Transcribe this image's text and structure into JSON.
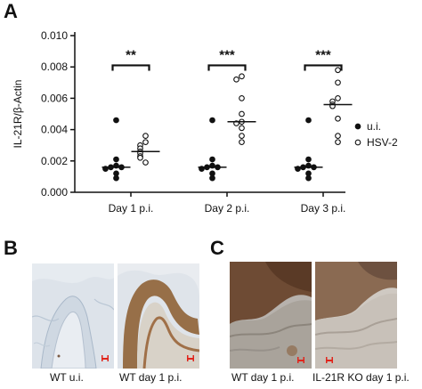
{
  "panels": {
    "a_label": "A",
    "b_label": "B",
    "c_label": "C"
  },
  "chart_data": {
    "type": "scatter",
    "ylabel": "IL-21R/β-Actin",
    "ylim": [
      0,
      0.01
    ],
    "yticks": [
      "0.000",
      "0.002",
      "0.004",
      "0.006",
      "0.008",
      "0.010"
    ],
    "groups": [
      "Day 1 p.i.",
      "Day 2 p.i.",
      "Day 3 p.i."
    ],
    "legend": {
      "position": "right",
      "entries": [
        {
          "label": "u.i.",
          "marker": "filled"
        },
        {
          "label": "HSV-2",
          "marker": "open"
        }
      ]
    },
    "series": [
      {
        "name": "u.i.",
        "marker": "filled",
        "values": [
          [
            0.0046,
            0.0021,
            0.0017,
            0.0016,
            0.0016,
            0.0015,
            0.0012,
            0.0009
          ],
          [
            0.0046,
            0.0021,
            0.0017,
            0.0016,
            0.0016,
            0.0015,
            0.0012,
            0.0009
          ],
          [
            0.0046,
            0.0021,
            0.0017,
            0.0016,
            0.0016,
            0.0015,
            0.0012,
            0.0009
          ]
        ],
        "medians": [
          0.0016,
          0.0016,
          0.0016
        ]
      },
      {
        "name": "HSV-2",
        "marker": "open",
        "values": [
          [
            0.0036,
            0.0032,
            0.003,
            0.0028,
            0.0026,
            0.0025,
            0.0023,
            0.0022,
            0.0019
          ],
          [
            0.0074,
            0.0072,
            0.006,
            0.005,
            0.0045,
            0.0044,
            0.0041,
            0.0036,
            0.0032
          ],
          [
            0.0078,
            0.007,
            0.006,
            0.0058,
            0.0056,
            0.0055,
            0.0047,
            0.0036,
            0.0032
          ]
        ],
        "medians": [
          0.0026,
          0.0045,
          0.0056
        ]
      }
    ],
    "significance": [
      {
        "group": "Day 1 p.i.",
        "label": "**",
        "y": 0.0081
      },
      {
        "group": "Day 2 p.i.",
        "label": "***",
        "y": 0.0081
      },
      {
        "group": "Day 3 p.i.",
        "label": "***",
        "y": 0.0081
      }
    ]
  },
  "images": [
    {
      "caption": "WT u.i."
    },
    {
      "caption": "WT day 1 p.i."
    },
    {
      "caption": "WT day 1 p.i."
    },
    {
      "caption": "IL-21R KO day 1 p.i."
    }
  ],
  "colors": {
    "scale_bar": "#e0241b",
    "stain_brown": "#8a5a2b",
    "tissue_blue": "#9fb3c8"
  }
}
